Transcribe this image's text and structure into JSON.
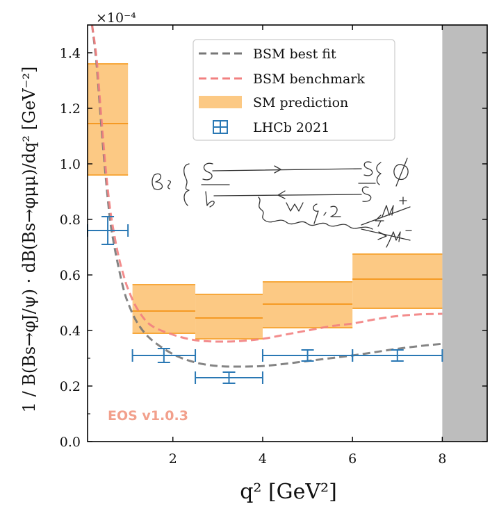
{
  "chart_data": {
    "type": "line",
    "xlabel": "q² [GeV²]",
    "ylabel": "1 / B(Bs→φJ/ψ) · dB(Bs→φμμ)/dq² [GeV⁻²]",
    "y_scale_label": "×10⁻⁴",
    "xlim": [
      0.1,
      9.0
    ],
    "ylim": [
      0.0,
      1.5
    ],
    "x_ticks": [
      "2",
      "4",
      "6",
      "8"
    ],
    "y_ticks": [
      "0.0",
      "0.2",
      "0.4",
      "0.6",
      "0.8",
      "1.0",
      "1.2",
      "1.4"
    ],
    "excluded_region": [
      8.0,
      9.0
    ],
    "watermark": "EOS v1.0.3",
    "legend": [
      {
        "name": "BSM best fit",
        "color": "#777777"
      },
      {
        "name": "BSM benchmark",
        "color": "#f28080"
      },
      {
        "name": "SM prediction",
        "color": "#fbbf6e"
      },
      {
        "name": "LHCb 2021",
        "color": "#2a78b4"
      }
    ],
    "series": [
      {
        "name": "BSM best fit",
        "x": [
          0.2,
          0.3,
          0.4,
          0.5,
          0.6,
          0.7,
          0.8,
          0.9,
          1.0,
          1.2,
          1.5,
          2.0,
          2.5,
          3.0,
          3.5,
          4.0,
          4.5,
          5.0,
          5.5,
          6.0,
          6.5,
          7.0,
          7.5,
          8.0
        ],
        "y": [
          1.5,
          1.36,
          1.15,
          0.96,
          0.8,
          0.7,
          0.62,
          0.55,
          0.5,
          0.43,
          0.37,
          0.315,
          0.285,
          0.272,
          0.27,
          0.272,
          0.28,
          0.29,
          0.3,
          0.31,
          0.322,
          0.334,
          0.344,
          0.352
        ]
      },
      {
        "name": "BSM benchmark",
        "x": [
          0.2,
          0.3,
          0.4,
          0.5,
          0.6,
          0.7,
          0.8,
          0.9,
          1.0,
          1.2,
          1.5,
          2.0,
          2.5,
          3.0,
          3.5,
          4.0,
          4.5,
          5.0,
          5.5,
          6.0,
          6.5,
          7.0,
          7.5,
          8.0
        ],
        "y": [
          1.5,
          1.38,
          1.18,
          0.99,
          0.84,
          0.74,
          0.66,
          0.6,
          0.55,
          0.48,
          0.42,
          0.385,
          0.365,
          0.36,
          0.362,
          0.37,
          0.385,
          0.4,
          0.415,
          0.425,
          0.44,
          0.452,
          0.458,
          0.46
        ]
      }
    ],
    "sm_prediction_bins": [
      {
        "x": [
          0.1,
          1.0
        ],
        "low": 0.96,
        "central": 1.145,
        "high": 1.36
      },
      {
        "x": [
          1.1,
          2.5
        ],
        "low": 0.39,
        "central": 0.47,
        "high": 0.565
      },
      {
        "x": [
          2.5,
          4.0
        ],
        "low": 0.37,
        "central": 0.445,
        "high": 0.53
      },
      {
        "x": [
          4.0,
          6.0
        ],
        "low": 0.41,
        "central": 0.495,
        "high": 0.575
      },
      {
        "x": [
          6.0,
          8.0
        ],
        "low": 0.48,
        "central": 0.585,
        "high": 0.675
      }
    ],
    "lhcb_2021": [
      {
        "x": [
          0.1,
          1.0
        ],
        "value": 0.76,
        "err": 0.05
      },
      {
        "x": [
          1.1,
          2.5
        ],
        "value": 0.31,
        "err": 0.025
      },
      {
        "x": [
          2.5,
          4.0
        ],
        "value": 0.23,
        "err": 0.02
      },
      {
        "x": [
          4.0,
          6.0
        ],
        "value": 0.31,
        "err": 0.02
      },
      {
        "x": [
          6.0,
          8.0
        ],
        "value": 0.31,
        "err": 0.02
      }
    ]
  }
}
